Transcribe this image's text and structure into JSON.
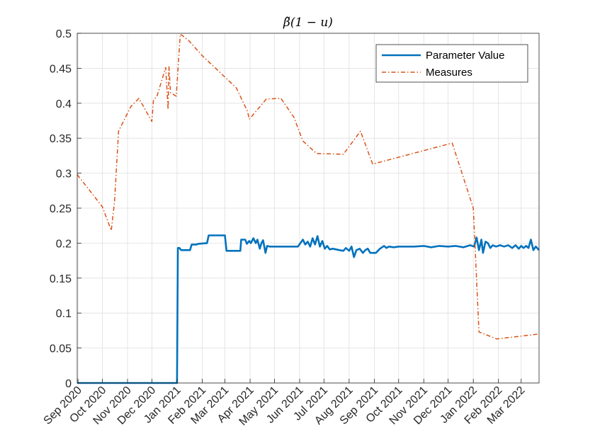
{
  "chart_data": {
    "type": "line",
    "title": "β̃(1 − u)",
    "xlabel": "",
    "ylabel": "",
    "xlim": [
      "2020-08-31",
      "2022-03-23"
    ],
    "ylim": [
      0,
      0.5
    ],
    "y_ticks": [
      0,
      0.05,
      0.1,
      0.15,
      0.2,
      0.25,
      0.3,
      0.35,
      0.4,
      0.45,
      0.5
    ],
    "y_tick_labels": [
      "0",
      "0.05",
      "0.1",
      "0.15",
      "0.2",
      "0.25",
      "0.3",
      "0.35",
      "0.4",
      "0.45",
      "0.5"
    ],
    "x_ticks": [
      "2020-09-01",
      "2020-10-01",
      "2020-11-01",
      "2020-12-01",
      "2021-01-01",
      "2021-02-01",
      "2021-03-01",
      "2021-04-01",
      "2021-05-01",
      "2021-06-01",
      "2021-07-01",
      "2021-08-01",
      "2021-09-01",
      "2021-10-01",
      "2021-11-01",
      "2021-12-01",
      "2022-01-01",
      "2022-02-01",
      "2022-03-01"
    ],
    "x_tick_labels": [
      "Sep 2020",
      "Oct 2020",
      "Nov 2020",
      "Dec 2020",
      "Jan 2021",
      "Feb 2021",
      "Mar 2021",
      "Apr 2021",
      "May 2021",
      "Jun 2021",
      "Jul 2021",
      "Aug 2021",
      "Sep 2021",
      "Oct 2021",
      "Nov 2021",
      "Dec 2021",
      "Jan 2022",
      "Feb 2022",
      "Mar 2022"
    ],
    "grid": true,
    "legend_position": "top-right",
    "series": [
      {
        "name": "Parameter Value",
        "color": "#0072BD",
        "style": "solid",
        "x": [
          "2020-08-31",
          "2020-12-30",
          "2021-01-01",
          "2021-01-02",
          "2021-01-04",
          "2021-01-06",
          "2021-01-16",
          "2021-01-17",
          "2021-01-19",
          "2021-01-25",
          "2021-01-27",
          "2021-02-07",
          "2021-02-09",
          "2021-02-12",
          "2021-03-01",
          "2021-03-03",
          "2021-03-20",
          "2021-03-21",
          "2021-03-24",
          "2021-03-26",
          "2021-03-28",
          "2021-03-31",
          "2021-04-02",
          "2021-04-05",
          "2021-04-08",
          "2021-04-10",
          "2021-04-13",
          "2021-04-15",
          "2021-04-17",
          "2021-04-20",
          "2021-04-22",
          "2021-04-25",
          "2021-05-01",
          "2021-05-20",
          "2021-05-30",
          "2021-06-02",
          "2021-06-05",
          "2021-06-08",
          "2021-06-11",
          "2021-06-14",
          "2021-06-17",
          "2021-06-20",
          "2021-06-23",
          "2021-06-26",
          "2021-06-29",
          "2021-07-02",
          "2021-07-05",
          "2021-07-08",
          "2021-07-12",
          "2021-07-16",
          "2021-07-20",
          "2021-07-25",
          "2021-07-28",
          "2021-08-01",
          "2021-08-04",
          "2021-08-07",
          "2021-08-10",
          "2021-08-14",
          "2021-08-18",
          "2021-08-21",
          "2021-08-24",
          "2021-08-27",
          "2021-08-30",
          "2021-09-01",
          "2021-09-03",
          "2021-09-08",
          "2021-09-13",
          "2021-09-16",
          "2021-09-19",
          "2021-09-25",
          "2021-10-01",
          "2021-10-10",
          "2021-10-20",
          "2021-11-01",
          "2021-11-10",
          "2021-11-20",
          "2021-12-01",
          "2021-12-10",
          "2021-12-20",
          "2021-12-28",
          "2022-01-02",
          "2022-01-05",
          "2022-01-08",
          "2022-01-11",
          "2022-01-13",
          "2022-01-16",
          "2022-01-19",
          "2022-01-22",
          "2022-01-25",
          "2022-01-29",
          "2022-02-03",
          "2022-02-08",
          "2022-02-13",
          "2022-02-18",
          "2022-02-22",
          "2022-02-26",
          "2022-03-01",
          "2022-03-04",
          "2022-03-07",
          "2022-03-10",
          "2022-03-13",
          "2022-03-16",
          "2022-03-19",
          "2022-03-23"
        ],
        "y": [
          0,
          0,
          0,
          0.193,
          0.193,
          0.19,
          0.19,
          0.19,
          0.198,
          0.198,
          0.199,
          0.2,
          0.211,
          0.211,
          0.211,
          0.189,
          0.189,
          0.205,
          0.205,
          0.205,
          0.199,
          0.203,
          0.2,
          0.207,
          0.2,
          0.205,
          0.192,
          0.2,
          0.204,
          0.186,
          0.196,
          0.195,
          0.195,
          0.195,
          0.195,
          0.2,
          0.205,
          0.198,
          0.202,
          0.195,
          0.207,
          0.198,
          0.21,
          0.195,
          0.203,
          0.192,
          0.196,
          0.191,
          0.192,
          0.191,
          0.19,
          0.189,
          0.193,
          0.189,
          0.195,
          0.18,
          0.19,
          0.192,
          0.186,
          0.19,
          0.192,
          0.186,
          0.186,
          0.186,
          0.186,
          0.192,
          0.196,
          0.193,
          0.195,
          0.194,
          0.195,
          0.195,
          0.195,
          0.196,
          0.194,
          0.196,
          0.195,
          0.196,
          0.194,
          0.197,
          0.195,
          0.208,
          0.19,
          0.205,
          0.186,
          0.202,
          0.2,
          0.193,
          0.197,
          0.195,
          0.197,
          0.195,
          0.197,
          0.193,
          0.197,
          0.192,
          0.196,
          0.193,
          0.196,
          0.193,
          0.205,
          0.19,
          0.195,
          0.19
        ]
      },
      {
        "name": "Measures",
        "color": "#D95319",
        "style": "dash-dot",
        "x": [
          "2020-08-31",
          "2020-10-01",
          "2020-10-12",
          "2020-10-16",
          "2020-10-21",
          "2020-11-05",
          "2020-11-15",
          "2020-12-01",
          "2020-12-03",
          "2020-12-07",
          "2020-12-18",
          "2020-12-21",
          "2020-12-22",
          "2020-12-24",
          "2020-12-31",
          "2021-01-05",
          "2021-01-15",
          "2021-02-01",
          "2021-03-15",
          "2021-03-29",
          "2021-03-31",
          "2021-04-21",
          "2021-05-09",
          "2021-05-25",
          "2021-06-05",
          "2021-06-22",
          "2021-07-25",
          "2021-08-15",
          "2021-08-30",
          "2021-12-06",
          "2022-01-01",
          "2022-01-08",
          "2022-01-30",
          "2022-03-23"
        ],
        "y": [
          0.298,
          0.252,
          0.218,
          0.259,
          0.36,
          0.395,
          0.407,
          0.374,
          0.405,
          0.409,
          0.451,
          0.391,
          0.452,
          0.415,
          0.41,
          0.499,
          0.49,
          0.468,
          0.422,
          0.388,
          0.377,
          0.406,
          0.407,
          0.38,
          0.346,
          0.328,
          0.327,
          0.36,
          0.313,
          0.343,
          0.25,
          0.073,
          0.063,
          0.07
        ]
      }
    ]
  }
}
